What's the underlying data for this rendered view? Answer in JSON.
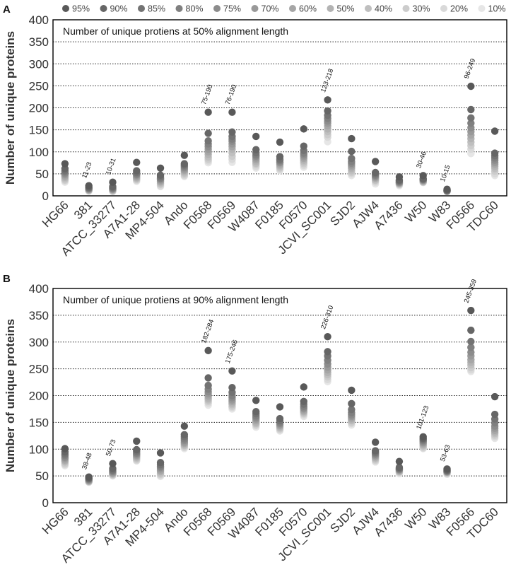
{
  "legend": {
    "items": [
      {
        "label": "95%",
        "color": "#595959"
      },
      {
        "label": "90%",
        "color": "#666666"
      },
      {
        "label": "85%",
        "color": "#737373"
      },
      {
        "label": "80%",
        "color": "#808080"
      },
      {
        "label": "75%",
        "color": "#8c8c8c"
      },
      {
        "label": "70%",
        "color": "#999999"
      },
      {
        "label": "60%",
        "color": "#a6a6a6"
      },
      {
        "label": "50%",
        "color": "#b3b3b3"
      },
      {
        "label": "40%",
        "color": "#bfbfbf"
      },
      {
        "label": "30%",
        "color": "#cccccc"
      },
      {
        "label": "20%",
        "color": "#d9d9d9"
      },
      {
        "label": "10%",
        "color": "#e6e6e6"
      }
    ]
  },
  "chart_data": [
    {
      "panel": "A",
      "type": "scatter",
      "title": "Number of unique protiens at 50% alignment length",
      "ylabel": "Number of unique proteins",
      "xlabel": "",
      "ylim": [
        0,
        400
      ],
      "yticks": [
        0,
        50,
        100,
        150,
        200,
        250,
        300,
        350,
        400
      ],
      "grid": "horizontal dotted",
      "categories": [
        "HG66",
        "381",
        "ATCC_33277",
        "A7A1-28",
        "MP4-504",
        "Ando",
        "F0568",
        "F0569",
        "W4087",
        "F0185",
        "F0570",
        "JCVI_SC001",
        "SJD2",
        "AJW4",
        "A7436",
        "W50",
        "W83",
        "F0566",
        "TDC60"
      ],
      "series": [
        {
          "name": "95%",
          "values": [
            73,
            23,
            31,
            76,
            63,
            92,
            190,
            190,
            135,
            122,
            152,
            218,
            130,
            78,
            43,
            46,
            15,
            249,
            147
          ]
        },
        {
          "name": "90%",
          "values": [
            62,
            20,
            21,
            57,
            47,
            73,
            142,
            145,
            105,
            89,
            113,
            193,
            101,
            53,
            36,
            39,
            13,
            196,
            97
          ]
        },
        {
          "name": "85%",
          "values": [
            57,
            18,
            19,
            53,
            43,
            70,
            125,
            135,
            98,
            83,
            103,
            183,
            85,
            50,
            34,
            38,
            12,
            177,
            91
          ]
        },
        {
          "name": "80%",
          "values": [
            54,
            17,
            17,
            50,
            40,
            67,
            118,
            129,
            93,
            80,
            97,
            176,
            78,
            47,
            32,
            37,
            12,
            165,
            86
          ]
        },
        {
          "name": "75%",
          "values": [
            51,
            16,
            16,
            48,
            38,
            64,
            112,
            124,
            90,
            77,
            93,
            170,
            74,
            45,
            31,
            36,
            11,
            155,
            81
          ]
        },
        {
          "name": "70%",
          "values": [
            48,
            15,
            15,
            46,
            36,
            61,
            106,
            118,
            86,
            75,
            89,
            165,
            70,
            43,
            30,
            35,
            11,
            146,
            76
          ]
        },
        {
          "name": "60%",
          "values": [
            45,
            14,
            14,
            43,
            33,
            58,
            100,
            112,
            82,
            72,
            85,
            159,
            66,
            41,
            29,
            34,
            11,
            138,
            72
          ]
        },
        {
          "name": "50%",
          "values": [
            42,
            13,
            13,
            41,
            31,
            55,
            94,
            106,
            78,
            69,
            81,
            152,
            62,
            39,
            28,
            33,
            10,
            130,
            67
          ]
        },
        {
          "name": "40%",
          "values": [
            39,
            13,
            12,
            39,
            28,
            52,
            88,
            98,
            74,
            66,
            77,
            146,
            57,
            36,
            27,
            32,
            10,
            122,
            62
          ]
        },
        {
          "name": "30%",
          "values": [
            36,
            12,
            11,
            37,
            26,
            49,
            83,
            90,
            71,
            63,
            73,
            139,
            53,
            34,
            26,
            31,
            10,
            114,
            56
          ]
        },
        {
          "name": "20%",
          "values": [
            34,
            11,
            10,
            35,
            23,
            46,
            79,
            83,
            67,
            60,
            69,
            133,
            50,
            31,
            25,
            31,
            10,
            106,
            50
          ]
        },
        {
          "name": "10%",
          "values": [
            31,
            11,
            10,
            33,
            21,
            44,
            75,
            76,
            63,
            58,
            65,
            123,
            46,
            27,
            23,
            30,
            10,
            96,
            46
          ]
        }
      ],
      "annotations": [
        {
          "category": "381",
          "text": "11-23",
          "anchor": 23
        },
        {
          "category": "ATCC_33277",
          "text": "10-31",
          "anchor": 31
        },
        {
          "category": "F0568",
          "text": "75-190",
          "anchor": 190
        },
        {
          "category": "F0569",
          "text": "76-190",
          "anchor": 190
        },
        {
          "category": "JCVI_SC001",
          "text": "123-218",
          "anchor": 218
        },
        {
          "category": "W50",
          "text": "30-46",
          "anchor": 46
        },
        {
          "category": "W83",
          "text": "10-15",
          "anchor": 15
        },
        {
          "category": "F0566",
          "text": "96-249",
          "anchor": 249
        }
      ]
    },
    {
      "panel": "B",
      "type": "scatter",
      "title": "Number of unique protiens at 90% alignment length",
      "ylabel": "Number of unique proteins",
      "xlabel": "",
      "ylim": [
        0,
        400
      ],
      "yticks": [
        0,
        50,
        100,
        150,
        200,
        250,
        300,
        350,
        400
      ],
      "grid": "horizontal dotted",
      "categories": [
        "HG66",
        "381",
        "ATCC_33277",
        "A7A1-28",
        "MP4-504",
        "Ando",
        "F0568",
        "F0569",
        "W4087",
        "F0185",
        "F0570",
        "JCVI_SC001",
        "SJD2",
        "AJW4",
        "A7436",
        "W50",
        "W83",
        "F0566",
        "TDC60"
      ],
      "series": [
        {
          "name": "95%",
          "values": [
            101,
            48,
            73,
            115,
            93,
            143,
            284,
            246,
            191,
            179,
            216,
            310,
            210,
            113,
            77,
            123,
            63,
            359,
            198
          ]
        },
        {
          "name": "90%",
          "values": [
            95,
            46,
            64,
            99,
            75,
            127,
            233,
            215,
            170,
            157,
            189,
            282,
            185,
            97,
            66,
            120,
            61,
            322,
            165
          ]
        },
        {
          "name": "85%",
          "values": [
            91,
            45,
            61,
            96,
            71,
            123,
            219,
            206,
            166,
            153,
            184,
            274,
            174,
            94,
            64,
            118,
            60,
            301,
            156
          ]
        },
        {
          "name": "80%",
          "values": [
            88,
            44,
            59,
            93,
            68,
            119,
            212,
            200,
            162,
            150,
            180,
            266,
            168,
            92,
            63,
            116,
            59,
            290,
            149
          ]
        },
        {
          "name": "75%",
          "values": [
            85,
            43,
            58,
            91,
            66,
            116,
            207,
            196,
            159,
            148,
            177,
            259,
            164,
            90,
            62,
            114,
            58,
            281,
            143
          ]
        },
        {
          "name": "70%",
          "values": [
            83,
            42,
            56,
            89,
            63,
            113,
            203,
            192,
            156,
            146,
            175,
            253,
            161,
            88,
            61,
            112,
            58,
            274,
            139
          ]
        },
        {
          "name": "60%",
          "values": [
            80,
            41,
            55,
            87,
            60,
            111,
            199,
            189,
            153,
            144,
            172,
            248,
            158,
            86,
            60,
            110,
            57,
            267,
            135
          ]
        },
        {
          "name": "50%",
          "values": [
            78,
            40,
            54,
            85,
            58,
            109,
            195,
            186,
            150,
            142,
            170,
            243,
            155,
            84,
            59,
            108,
            57,
            262,
            132
          ]
        },
        {
          "name": "40%",
          "values": [
            76,
            40,
            53,
            83,
            55,
            107,
            192,
            183,
            148,
            140,
            168,
            239,
            153,
            82,
            58,
            106,
            56,
            257,
            129
          ]
        },
        {
          "name": "30%",
          "values": [
            73,
            39,
            52,
            81,
            53,
            105,
            189,
            180,
            146,
            138,
            166,
            235,
            150,
            80,
            57,
            104,
            55,
            252,
            126
          ]
        },
        {
          "name": "20%",
          "values": [
            71,
            39,
            51,
            79,
            51,
            103,
            186,
            178,
            144,
            136,
            164,
            230,
            148,
            78,
            56,
            102,
            54,
            248,
            123
          ]
        },
        {
          "name": "10%",
          "values": [
            69,
            38,
            50,
            78,
            49,
            101,
            182,
            175,
            141,
            134,
            161,
            226,
            145,
            76,
            54,
            101,
            53,
            245,
            120
          ]
        }
      ],
      "annotations": [
        {
          "category": "381",
          "text": "38-48",
          "anchor": 48
        },
        {
          "category": "ATCC_33277",
          "text": "50-73",
          "anchor": 73
        },
        {
          "category": "F0568",
          "text": "182-284",
          "anchor": 284
        },
        {
          "category": "F0569",
          "text": "175-246",
          "anchor": 246
        },
        {
          "category": "JCVI_SC001",
          "text": "226-310",
          "anchor": 310
        },
        {
          "category": "W50",
          "text": "101-123",
          "anchor": 123
        },
        {
          "category": "W83",
          "text": "53-63",
          "anchor": 63
        },
        {
          "category": "F0566",
          "text": "245-359",
          "anchor": 359
        }
      ]
    }
  ]
}
